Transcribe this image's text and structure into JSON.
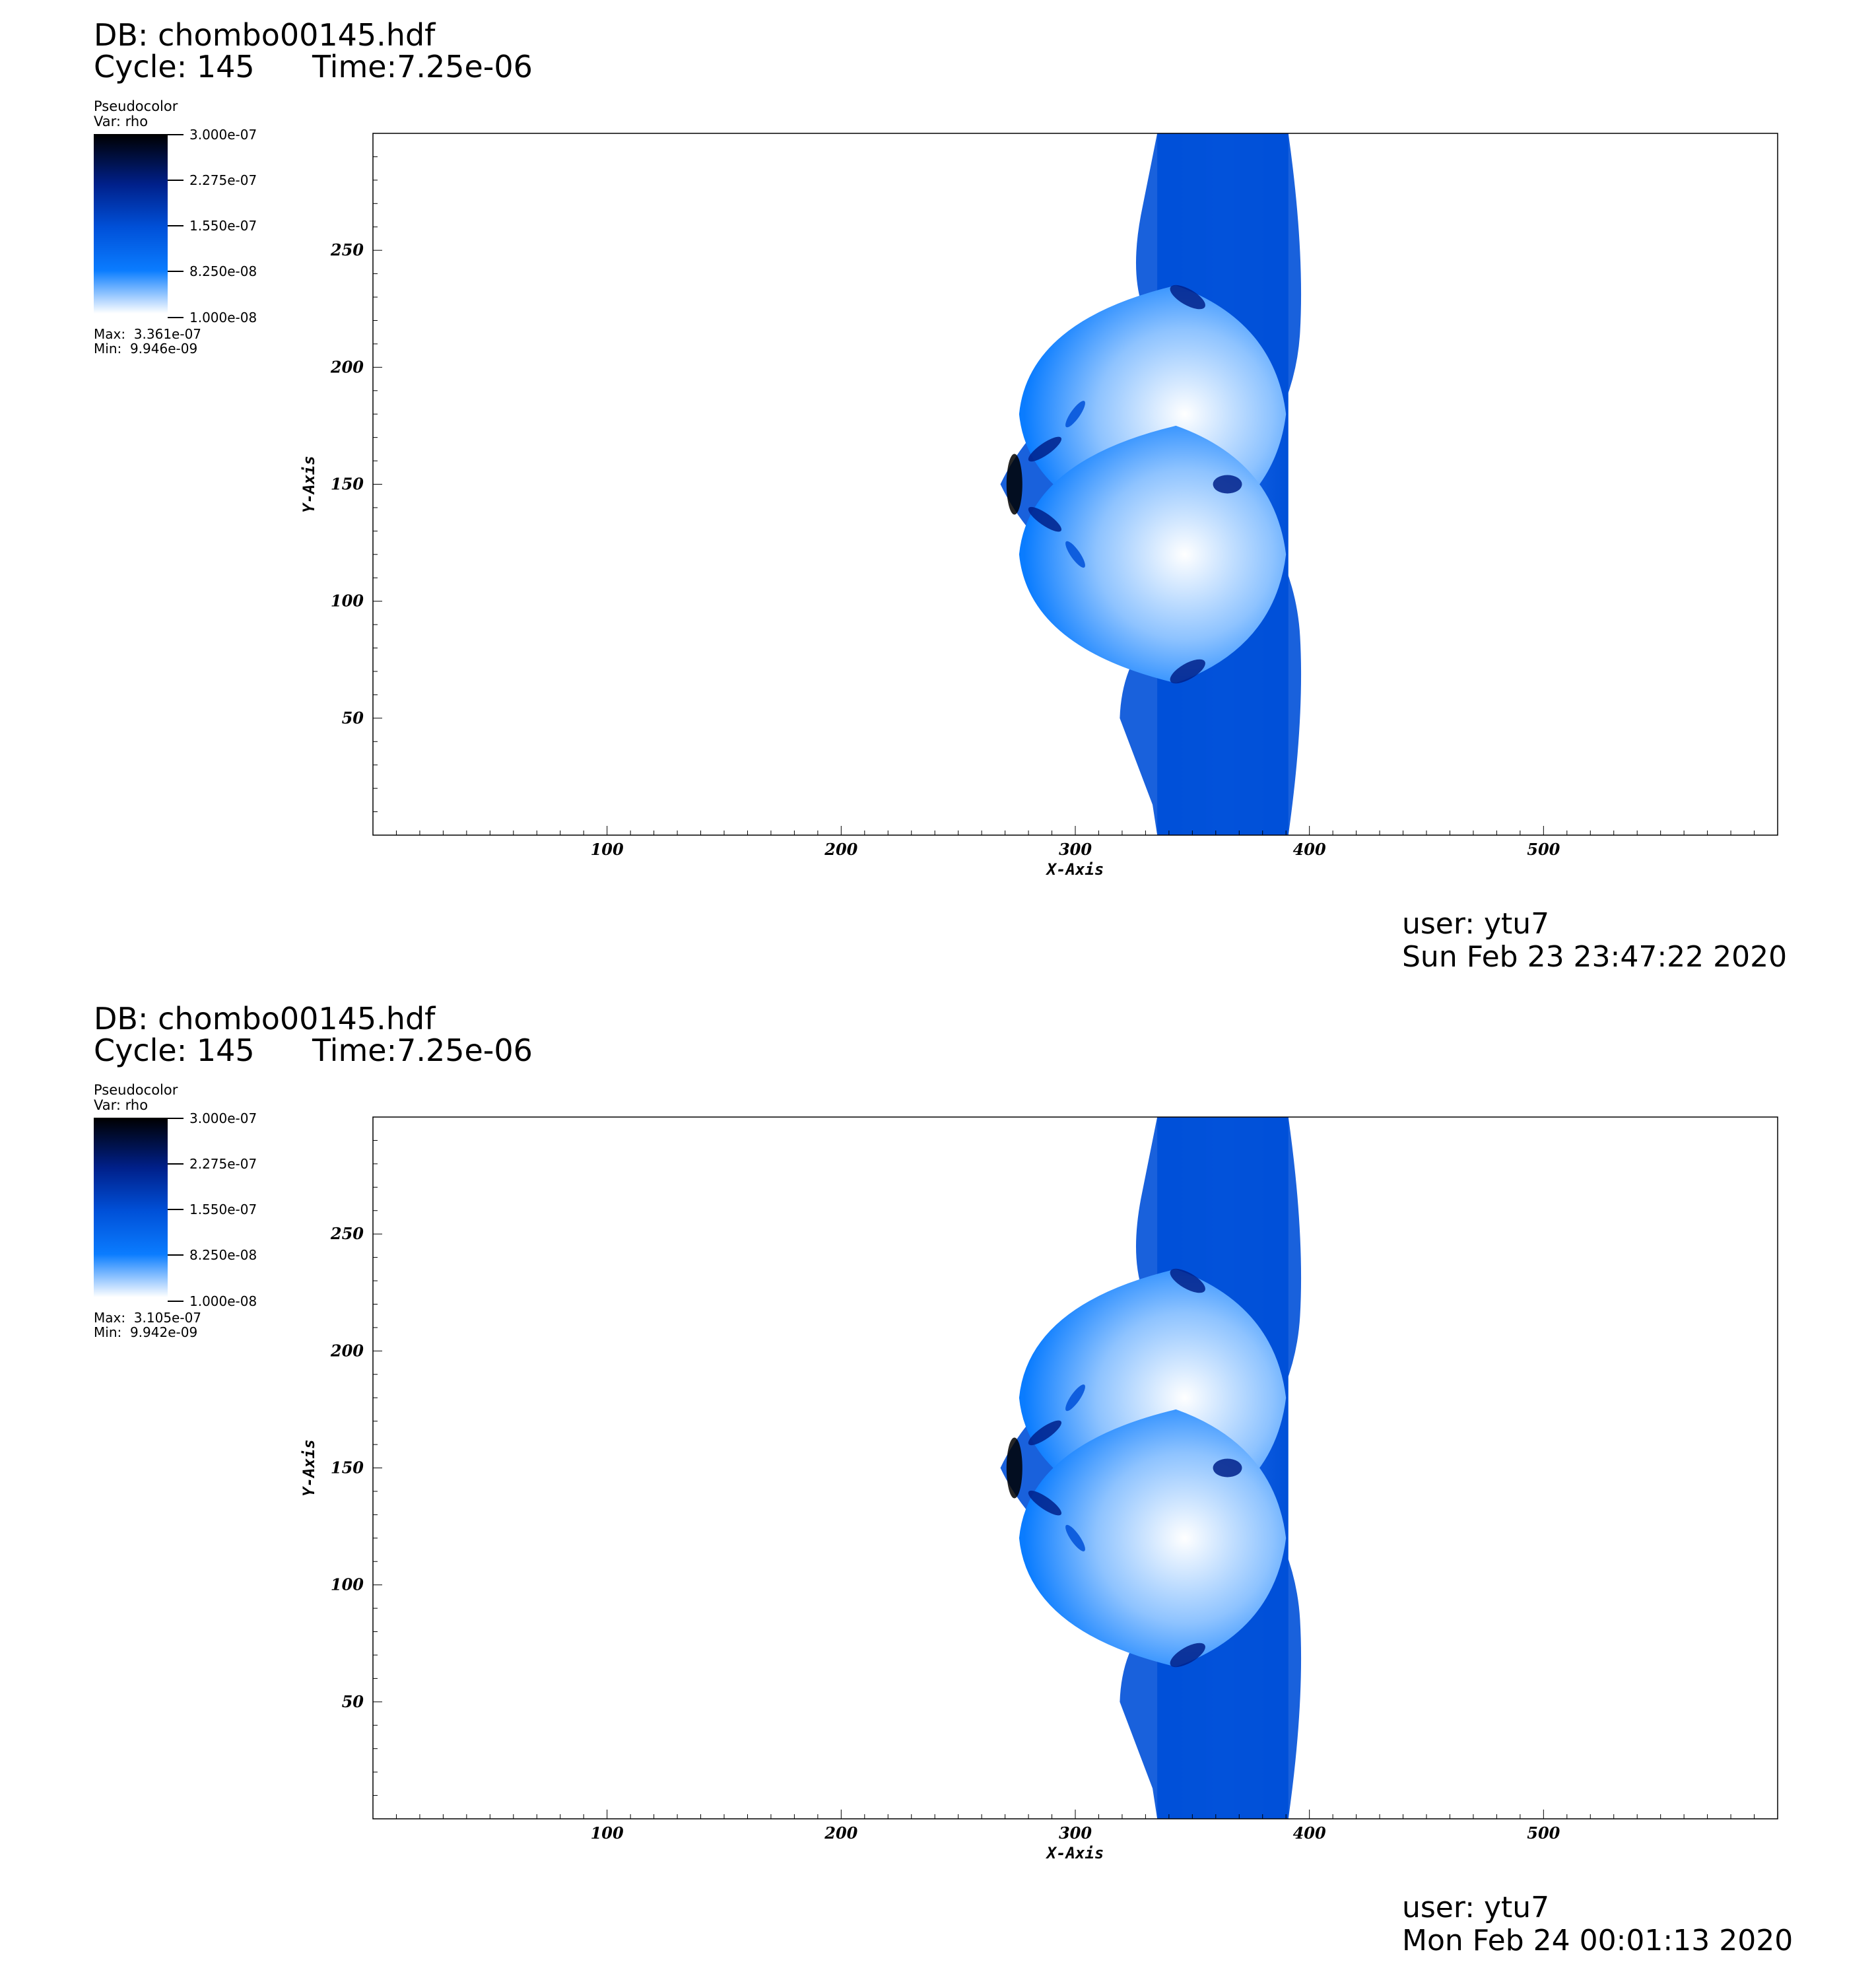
{
  "panels": [
    {
      "db_label": "DB: chombo00145.hdf",
      "cycle_label": "Cycle: 145",
      "time_label": "Time:7.25e-06",
      "legend": {
        "plot_type": "Pseudocolor",
        "var_label": "Var: rho",
        "ticks": [
          "3.000e-07",
          "2.275e-07",
          "1.550e-07",
          "8.250e-08",
          "1.000e-08"
        ],
        "max_label": "Max:  3.361e-07",
        "min_label": "Min:  9.946e-09"
      },
      "user_label": "user: ytu7",
      "date_label": "Sun Feb 23 23:47:22 2020"
    },
    {
      "db_label": "DB: chombo00145.hdf",
      "cycle_label": "Cycle: 145",
      "time_label": "Time:7.25e-06",
      "legend": {
        "plot_type": "Pseudocolor",
        "var_label": "Var: rho",
        "ticks": [
          "3.000e-07",
          "2.275e-07",
          "1.550e-07",
          "8.250e-08",
          "1.000e-08"
        ],
        "max_label": "Max:  3.105e-07",
        "min_label": "Min:  9.942e-09"
      },
      "user_label": "user: ytu7",
      "date_label": "Mon Feb 24 00:01:13 2020"
    }
  ],
  "chart_data": [
    {
      "type": "heatmap",
      "title": "",
      "xlabel": "X-Axis",
      "ylabel": "Y-Axis",
      "xlim": [
        0,
        600
      ],
      "ylim": [
        0,
        300
      ],
      "x_ticks": [
        100,
        200,
        300,
        400,
        500
      ],
      "y_ticks": [
        50,
        100,
        150,
        200,
        250
      ],
      "x_tick_labels": [
        "100",
        "200",
        "300",
        "400",
        "500"
      ],
      "y_tick_labels": [
        "50",
        "100",
        "150",
        "200",
        "250"
      ],
      "colormap": [
        "#ffffff",
        "#0a7cff",
        "#0050d8",
        "#00208a",
        "#000000"
      ],
      "color_range": [
        1e-08,
        3e-07
      ],
      "grid": false
    },
    {
      "type": "heatmap",
      "title": "",
      "xlabel": "X-Axis",
      "ylabel": "Y-Axis",
      "xlim": [
        0,
        600
      ],
      "ylim": [
        0,
        300
      ],
      "x_ticks": [
        100,
        200,
        300,
        400,
        500
      ],
      "y_ticks": [
        50,
        100,
        150,
        200,
        250
      ],
      "x_tick_labels": [
        "100",
        "200",
        "300",
        "400",
        "500"
      ],
      "y_tick_labels": [
        "50",
        "100",
        "150",
        "200",
        "250"
      ],
      "colormap": [
        "#ffffff",
        "#0a7cff",
        "#0050d8",
        "#00208a",
        "#000000"
      ],
      "color_range": [
        1e-08,
        3e-07
      ],
      "grid": false
    }
  ]
}
